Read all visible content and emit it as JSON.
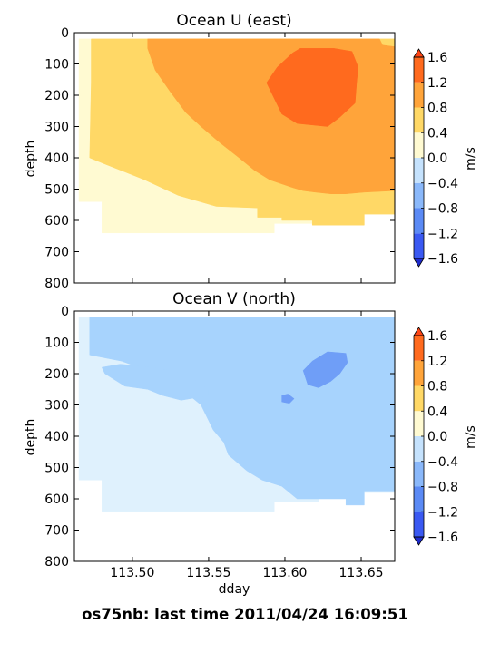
{
  "footer": "os75nb: last time 2011/04/24 16:09:51",
  "chart_data": [
    {
      "type": "contour",
      "title": "Ocean U (east)",
      "xlabel": "",
      "ylabel": "depth",
      "xlim": [
        113.462,
        113.672
      ],
      "ylim": [
        800,
        0
      ],
      "x_ticks": [
        113.5,
        113.55,
        113.6,
        113.65
      ],
      "x_tick_labels": [
        "",
        "",
        "",
        ""
      ],
      "y_ticks": [
        0,
        100,
        200,
        300,
        400,
        500,
        600,
        700,
        800
      ],
      "y_tick_labels": [
        "0",
        "100",
        "200",
        "300",
        "400",
        "500",
        "600",
        "700",
        "800"
      ],
      "colorbar": {
        "label": "m/s",
        "levels": [
          -1.6,
          -1.2,
          -0.8,
          -0.4,
          0.0,
          0.4,
          0.8,
          1.2,
          1.6
        ],
        "tick_labels": [
          "−1.6",
          "−1.2",
          "−0.8",
          "−0.4",
          "0.0",
          "0.4",
          "0.8",
          "1.2",
          "1.6"
        ],
        "colors": [
          "#3a59f2",
          "#5b8af5",
          "#8ab8fa",
          "#c5e2fd",
          "#fffad2",
          "#ffd866",
          "#ffa43a",
          "#ff6a1e",
          "#ff4514",
          "#1e2bcc"
        ]
      },
      "regions": [
        {
          "band": "0.0 to 0.4",
          "color": "#fffad2",
          "points": [
            [
              113.465,
              20
            ],
            [
              113.672,
              20
            ],
            [
              113.672,
              580
            ],
            [
              113.622,
              580
            ],
            [
              113.622,
              610
            ],
            [
              113.593,
              610
            ],
            [
              113.593,
              640
            ],
            [
              113.48,
              640
            ],
            [
              113.48,
              540
            ],
            [
              113.465,
              540
            ]
          ]
        },
        {
          "band": "0.4 to 0.8",
          "color": "#ffd866",
          "points": [
            [
              113.473,
              20
            ],
            [
              113.672,
              20
            ],
            [
              113.672,
              580
            ],
            [
              113.652,
              580
            ],
            [
              113.652,
              615
            ],
            [
              113.618,
              615
            ],
            [
              113.618,
              600
            ],
            [
              113.598,
              600
            ],
            [
              113.598,
              590
            ],
            [
              113.582,
              590
            ],
            [
              113.582,
              560
            ],
            [
              113.555,
              555
            ],
            [
              113.53,
              520
            ],
            [
              113.508,
              470
            ],
            [
              113.495,
              445
            ],
            [
              113.482,
              420
            ],
            [
              113.472,
              400
            ],
            [
              113.473,
              160
            ]
          ]
        },
        {
          "band": "0.8 to 1.2",
          "color": "#ffa43a",
          "points": [
            [
              113.51,
              20
            ],
            [
              113.662,
              20
            ],
            [
              113.664,
              40
            ],
            [
              113.672,
              45
            ],
            [
              113.672,
              505
            ],
            [
              113.652,
              510
            ],
            [
              113.64,
              515
            ],
            [
              113.63,
              515
            ],
            [
              113.62,
              510
            ],
            [
              113.612,
              505
            ],
            [
              113.605,
              495
            ],
            [
              113.59,
              470
            ],
            [
              113.58,
              440
            ],
            [
              113.57,
              400
            ],
            [
              113.557,
              350
            ],
            [
              113.545,
              300
            ],
            [
              113.535,
              255
            ],
            [
              113.525,
              190
            ],
            [
              113.515,
              120
            ],
            [
              113.51,
              50
            ]
          ]
        },
        {
          "band": "1.2 to 1.6",
          "color": "#ff6a1e",
          "points": [
            [
              113.595,
              110
            ],
            [
              113.605,
              65
            ],
            [
              113.61,
              50
            ],
            [
              113.632,
              50
            ],
            [
              113.644,
              60
            ],
            [
              113.648,
              110
            ],
            [
              113.647,
              160
            ],
            [
              113.646,
              225
            ],
            [
              113.636,
              270
            ],
            [
              113.628,
              300
            ],
            [
              113.608,
              290
            ],
            [
              113.598,
              260
            ],
            [
              113.592,
              200
            ],
            [
              113.588,
              160
            ]
          ]
        }
      ]
    },
    {
      "type": "contour",
      "title": "Ocean V (north)",
      "xlabel": "dday",
      "ylabel": "depth",
      "xlim": [
        113.462,
        113.672
      ],
      "ylim": [
        800,
        0
      ],
      "x_ticks": [
        113.5,
        113.55,
        113.6,
        113.65
      ],
      "x_tick_labels": [
        "113.50",
        "113.55",
        "113.60",
        "113.65"
      ],
      "y_ticks": [
        0,
        100,
        200,
        300,
        400,
        500,
        600,
        700,
        800
      ],
      "y_tick_labels": [
        "0",
        "100",
        "200",
        "300",
        "400",
        "500",
        "600",
        "700",
        "800"
      ],
      "colorbar": {
        "label": "m/s",
        "levels": [
          -1.6,
          -1.2,
          -0.8,
          -0.4,
          0.0,
          0.4,
          0.8,
          1.2,
          1.6
        ],
        "tick_labels": [
          "−1.6",
          "−1.2",
          "−0.8",
          "−0.4",
          "0.0",
          "0.4",
          "0.8",
          "1.2",
          "1.6"
        ],
        "colors": [
          "#3a59f2",
          "#5b8af5",
          "#8ab8fa",
          "#c5e2fd",
          "#fffad2",
          "#ffd866",
          "#ffa43a",
          "#ff6a1e",
          "#ff4514",
          "#1e2bcc"
        ]
      },
      "regions": [
        {
          "band": "-0.4 to 0.0",
          "color": "#dff1fd",
          "points": [
            [
              113.465,
              20
            ],
            [
              113.672,
              20
            ],
            [
              113.672,
              580
            ],
            [
              113.622,
              580
            ],
            [
              113.622,
              610
            ],
            [
              113.593,
              610
            ],
            [
              113.593,
              640
            ],
            [
              113.48,
              640
            ],
            [
              113.48,
              540
            ],
            [
              113.465,
              540
            ]
          ]
        },
        {
          "band": "-0.8 to -0.4",
          "color": "#a7d3fd",
          "points": [
            [
              113.472,
              20
            ],
            [
              113.672,
              20
            ],
            [
              113.672,
              575
            ],
            [
              113.652,
              575
            ],
            [
              113.652,
              620
            ],
            [
              113.64,
              620
            ],
            [
              113.64,
              600
            ],
            [
              113.608,
              600
            ],
            [
              113.598,
              560
            ],
            [
              113.585,
              540
            ],
            [
              113.575,
              510
            ],
            [
              113.563,
              460
            ],
            [
              113.56,
              420
            ],
            [
              113.553,
              380
            ],
            [
              113.545,
              300
            ],
            [
              113.53,
              240
            ],
            [
              113.51,
              190
            ],
            [
              113.493,
              160
            ],
            [
              113.472,
              140
            ]
          ]
        },
        {
          "band": "-0.8 to -0.4",
          "color": "#a7d3fd",
          "points": [
            [
              113.48,
              180
            ],
            [
              113.492,
              170
            ],
            [
              113.515,
              180
            ],
            [
              113.535,
              200
            ],
            [
              113.55,
              250
            ],
            [
              113.55,
              270
            ],
            [
              113.532,
              285
            ],
            [
              113.52,
              270
            ],
            [
              113.51,
              250
            ],
            [
              113.495,
              240
            ],
            [
              113.482,
              200
            ]
          ]
        },
        {
          "band": "-1.2 to -0.8",
          "color": "#6f9ef7",
          "points": [
            [
              113.612,
              190
            ],
            [
              113.618,
              160
            ],
            [
              113.628,
              130
            ],
            [
              113.64,
              135
            ],
            [
              113.641,
              165
            ],
            [
              113.636,
              200
            ],
            [
              113.63,
              225
            ],
            [
              113.622,
              245
            ],
            [
              113.615,
              235
            ]
          ]
        },
        {
          "band": "-1.2 to -0.8",
          "color": "#6f9ef7",
          "points": [
            [
              113.598,
              270
            ],
            [
              113.602,
              265
            ],
            [
              113.606,
              280
            ],
            [
              113.603,
              295
            ],
            [
              113.598,
              290
            ]
          ]
        }
      ]
    }
  ]
}
